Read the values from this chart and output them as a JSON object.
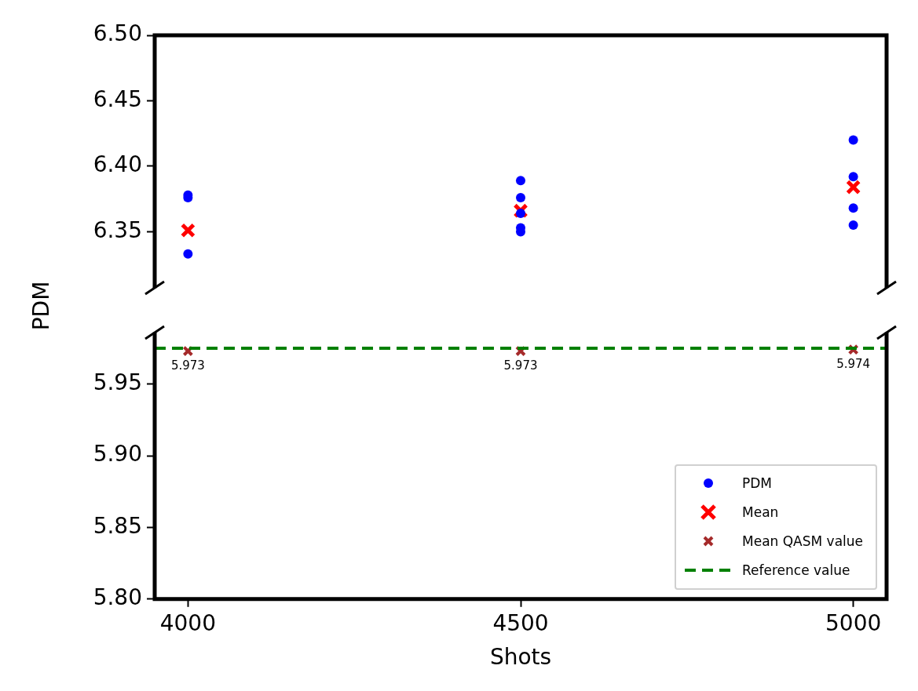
{
  "chart_data": [
    {
      "type": "scatter",
      "ylabel": "PDM",
      "xlim": [
        3950,
        5050
      ],
      "ylim": [
        6.307,
        6.5
      ],
      "yticks": [
        {
          "value": 6.35,
          "label": "6.35"
        },
        {
          "value": 6.4,
          "label": "6.40"
        },
        {
          "value": 6.45,
          "label": "6.45"
        },
        {
          "value": 6.5,
          "label": "6.50"
        }
      ],
      "tick_labels": "y",
      "grid": false,
      "legend": "bottom right",
      "series": [
        {
          "name": "PDM",
          "color": "#0000ff",
          "marker": "circle",
          "x": [
            4000,
            4000,
            4000,
            4500,
            4500,
            4500,
            4500,
            4500,
            5000,
            5000,
            5000,
            5000
          ],
          "values": [
            6.378,
            6.376,
            6.333,
            6.389,
            6.376,
            6.364,
            6.353,
            6.35,
            6.42,
            6.392,
            6.368,
            6.355
          ]
        },
        {
          "name": "Mean",
          "color": "#ff0000",
          "marker": "cross",
          "x": [
            4000,
            4500,
            5000
          ],
          "values": [
            6.351,
            6.366,
            6.384
          ]
        }
      ]
    },
    {
      "type": "scatter",
      "xlabel": "Shots",
      "xlim": [
        3950,
        5050
      ],
      "xticks": [
        4000,
        4500,
        5000
      ],
      "ylim": [
        5.8,
        5.986
      ],
      "yticks": [
        {
          "value": 5.8,
          "label": "5.80"
        },
        {
          "value": 5.85,
          "label": "5.85"
        },
        {
          "value": 5.9,
          "label": "5.90"
        },
        {
          "value": 5.95,
          "label": "5.95"
        }
      ],
      "grid": false,
      "legend": "bottom right",
      "series": [
        {
          "name": "Mean QASM value",
          "color": "#a52a2a",
          "marker": "cross",
          "x": [
            4000,
            4500,
            5000
          ],
          "values": [
            5.973,
            5.973,
            5.974
          ],
          "value_labels": [
            "5.973",
            "5.973",
            "5.974"
          ]
        }
      ],
      "ref_lines": [
        {
          "axis": "y",
          "value": 5.975,
          "label": "Reference value",
          "color": "#008000",
          "line_style": "dashed"
        }
      ]
    }
  ]
}
